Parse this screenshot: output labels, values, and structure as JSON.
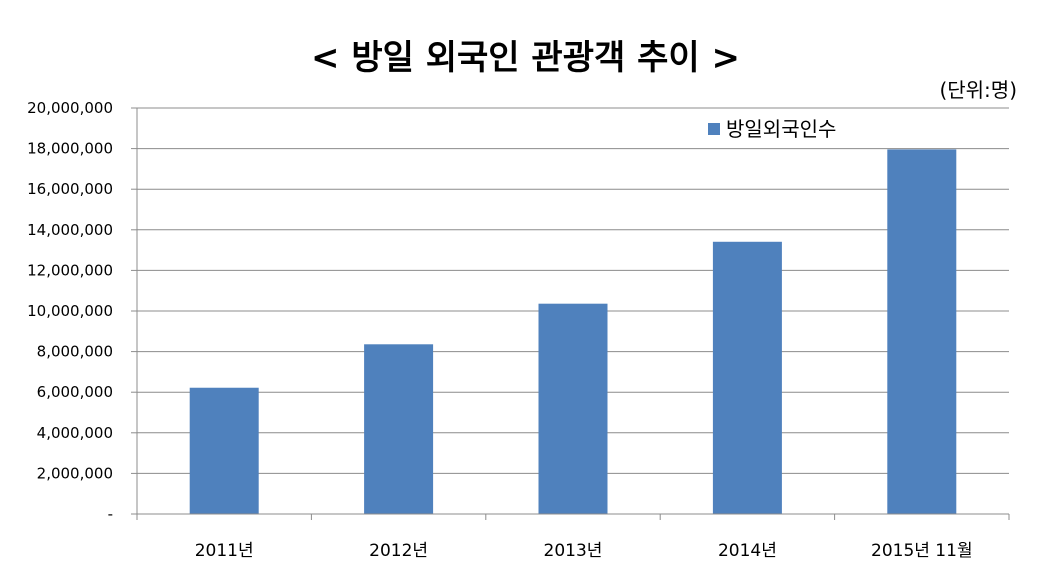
{
  "chart_data": {
    "type": "bar",
    "title": "< 방일 외국인 관광객 추이 >",
    "unit_label": "(단위:명)",
    "categories": [
      "2011년",
      "2012년",
      "2013년",
      "2014년",
      "2015년 11월"
    ],
    "series": [
      {
        "name": "방일외국인수",
        "values": [
          6220000,
          8360000,
          10360000,
          13410000,
          17960000
        ],
        "color": "#4f81bd"
      }
    ],
    "ylim": [
      0,
      20000000
    ],
    "yticks": [
      0,
      2000000,
      4000000,
      6000000,
      8000000,
      10000000,
      12000000,
      14000000,
      16000000,
      18000000,
      20000000
    ],
    "ytick_labels": [
      "-",
      "2,000,000",
      "4,000,000",
      "6,000,000",
      "8,000,000",
      "10,000,000",
      "12,000,000",
      "14,000,000",
      "16,000,000",
      "18,000,000",
      "20,000,000"
    ],
    "grid": true,
    "legend_position": "top-right"
  }
}
